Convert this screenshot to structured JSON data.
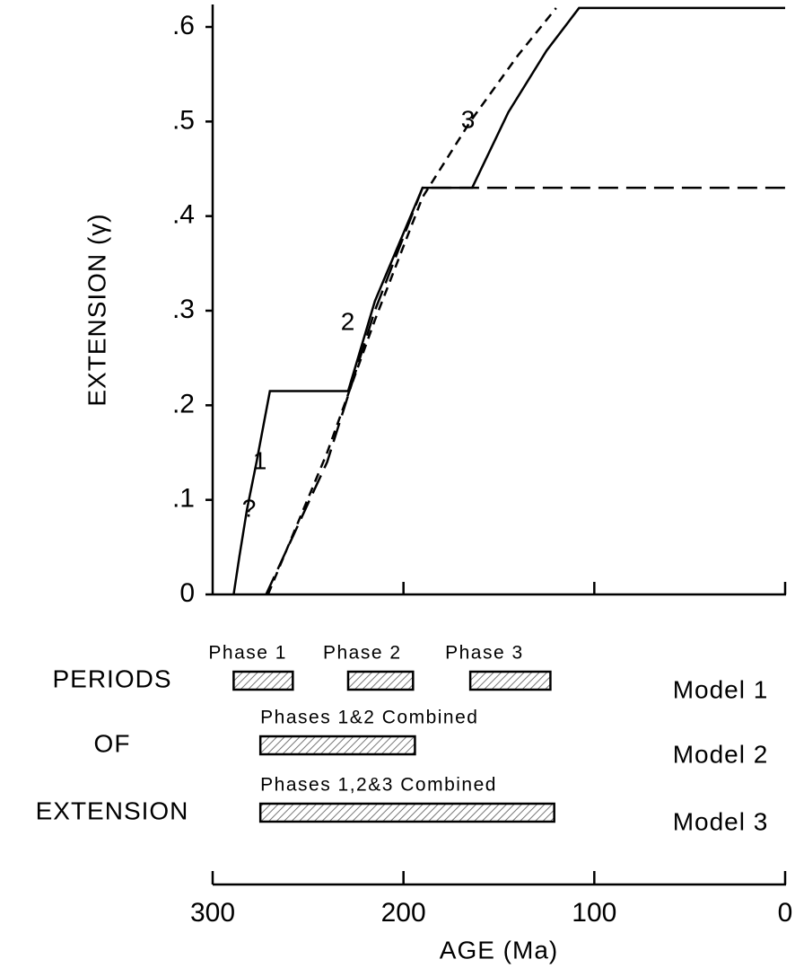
{
  "chart_data": {
    "type": "line",
    "y_label": "EXTENSION (γ)",
    "x_label": "AGE (Ma)",
    "xlim": [
      300,
      0
    ],
    "ylim": [
      0,
      0.6
    ],
    "xticks": [
      300,
      200,
      100,
      0
    ],
    "yticks": [
      0,
      {
        "value": 0.1,
        "label": ".1"
      },
      {
        "value": 0.2,
        "label": ".2"
      },
      {
        "value": 0.3,
        "label": ".3"
      },
      {
        "value": 0.4,
        "label": ".4"
      },
      {
        "value": 0.5,
        "label": ".5"
      },
      {
        "value": 0.6,
        "label": ".6"
      }
    ],
    "series": [
      {
        "name": "1",
        "color": "#000",
        "style": "solid",
        "x": [
          289,
          286,
          282,
          277,
          270,
          229,
          215,
          190,
          164,
          145,
          125,
          108,
          0
        ],
        "values": [
          0,
          0.04,
          0.09,
          0.14,
          0.215,
          0.215,
          0.31,
          0.43,
          0.43,
          0.51,
          0.575,
          0.62,
          0.62
        ]
      },
      {
        "name": "2",
        "color": "#000",
        "style": "long-dash",
        "x": [
          272,
          240,
          215,
          190,
          0
        ],
        "values": [
          0,
          0.14,
          0.3,
          0.43,
          0.43
        ]
      },
      {
        "name": "3",
        "color": "#000",
        "style": "short-dash",
        "x": [
          271,
          240,
          215,
          190,
          165,
          140,
          120
        ],
        "values": [
          0,
          0.15,
          0.29,
          0.42,
          0.5,
          0.57,
          0.62
        ]
      }
    ],
    "annotation": "?",
    "periods": {
      "title": [
        "PERIODS",
        "OF",
        "EXTENSION"
      ],
      "rows": [
        {
          "model": "Model 1",
          "bars": [
            {
              "label": "Phase 1",
              "start": 289,
              "end": 258
            },
            {
              "label": "Phase 2",
              "start": 229,
              "end": 195
            },
            {
              "label": "Phase 3",
              "start": 165,
              "end": 123
            }
          ]
        },
        {
          "model": "Model 2",
          "bars": [
            {
              "label": "Phases 1&2 Combined",
              "start": 275,
              "end": 194
            }
          ]
        },
        {
          "model": "Model 3",
          "bars": [
            {
              "label": "Phases 1,2&3 Combined",
              "start": 275,
              "end": 121
            }
          ]
        }
      ]
    }
  }
}
